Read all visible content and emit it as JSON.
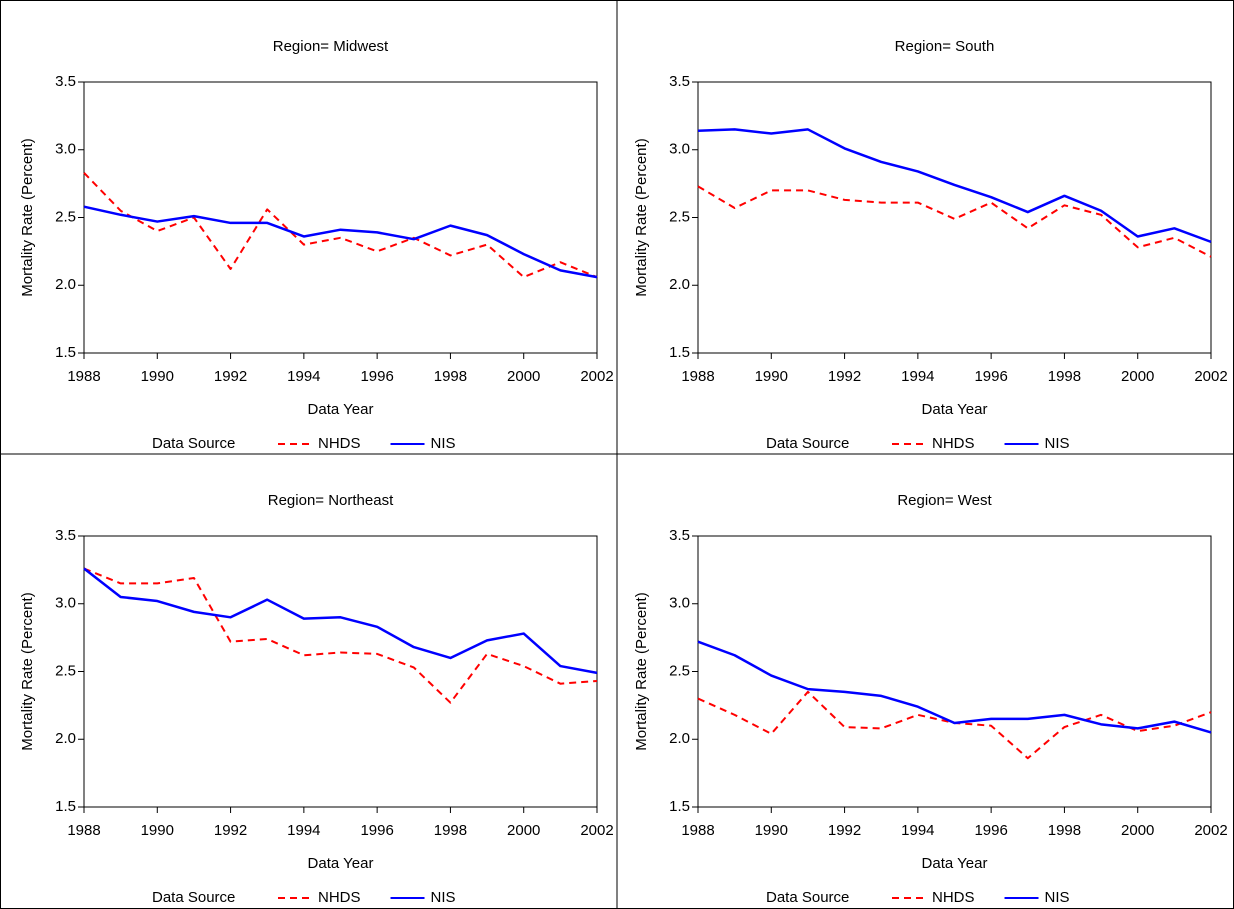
{
  "chart_data": [
    {
      "type": "line",
      "title": "Region= Midwest",
      "x_label": "Data Year",
      "y_label": "Mortality Rate (Percent)",
      "legend_title": "Data Source",
      "legend": "bottom",
      "x": [
        1988,
        1989,
        1990,
        1991,
        1992,
        1993,
        1994,
        1995,
        1996,
        1997,
        1998,
        1999,
        2000,
        2001,
        2002
      ],
      "series": [
        {
          "name": "NHDS",
          "color": "#ff0000",
          "line_style": "dashed",
          "values": [
            2.83,
            2.55,
            2.4,
            2.5,
            2.12,
            2.56,
            2.3,
            2.35,
            2.25,
            2.35,
            2.22,
            2.3,
            2.06,
            2.17,
            2.06
          ]
        },
        {
          "name": "NIS",
          "color": "#0000ff",
          "line_style": "solid",
          "values": [
            2.58,
            2.52,
            2.47,
            2.51,
            2.46,
            2.46,
            2.36,
            2.41,
            2.39,
            2.34,
            2.44,
            2.37,
            2.23,
            2.11,
            2.06
          ]
        }
      ],
      "xlim": [
        1988,
        2002
      ],
      "xticks": [
        1988,
        1990,
        1992,
        1994,
        1996,
        1998,
        2000,
        2002
      ],
      "ylim": [
        1.5,
        3.5
      ],
      "yticks": [
        1.5,
        {
          "value": 2,
          "label": "2.0"
        },
        2.5,
        {
          "value": 3,
          "label": "3.0"
        },
        3.5
      ]
    },
    {
      "type": "line",
      "title": "Region= South",
      "x_label": "Data Year",
      "y_label": "Mortality Rate (Percent)",
      "legend_title": "Data Source",
      "legend": "bottom",
      "x": [
        1988,
        1989,
        1990,
        1991,
        1992,
        1993,
        1994,
        1995,
        1996,
        1997,
        1998,
        1999,
        2000,
        2001,
        2002
      ],
      "series": [
        {
          "name": "NHDS",
          "color": "#ff0000",
          "line_style": "dashed",
          "values": [
            2.73,
            2.57,
            2.7,
            2.7,
            2.63,
            2.61,
            2.61,
            2.49,
            2.61,
            2.42,
            2.59,
            2.52,
            2.28,
            2.35,
            2.21
          ]
        },
        {
          "name": "NIS",
          "color": "#0000ff",
          "line_style": "solid",
          "values": [
            3.14,
            3.15,
            3.12,
            3.15,
            3.01,
            2.91,
            2.84,
            2.74,
            2.65,
            2.54,
            2.66,
            2.55,
            2.36,
            2.42,
            2.32
          ]
        }
      ],
      "xlim": [
        1988,
        2002
      ],
      "xticks": [
        1988,
        1990,
        1992,
        1994,
        1996,
        1998,
        2000,
        2002
      ],
      "ylim": [
        1.5,
        3.5
      ],
      "yticks": [
        1.5,
        {
          "value": 2,
          "label": "2.0"
        },
        2.5,
        {
          "value": 3,
          "label": "3.0"
        },
        3.5
      ]
    },
    {
      "type": "line",
      "title": "Region= Northeast",
      "x_label": "Data Year",
      "y_label": "Mortality Rate (Percent)",
      "legend_title": "Data Source",
      "legend": "bottom",
      "x": [
        1988,
        1989,
        1990,
        1991,
        1992,
        1993,
        1994,
        1995,
        1996,
        1997,
        1998,
        1999,
        2000,
        2001,
        2002
      ],
      "series": [
        {
          "name": "NHDS",
          "color": "#ff0000",
          "line_style": "dashed",
          "values": [
            3.26,
            3.15,
            3.15,
            3.19,
            2.72,
            2.74,
            2.62,
            2.64,
            2.63,
            2.53,
            2.27,
            2.63,
            2.54,
            2.41,
            2.43
          ]
        },
        {
          "name": "NIS",
          "color": "#0000ff",
          "line_style": "solid",
          "values": [
            3.26,
            3.05,
            3.02,
            2.94,
            2.9,
            3.03,
            2.89,
            2.9,
            2.83,
            2.68,
            2.6,
            2.73,
            2.78,
            2.54,
            2.49
          ]
        }
      ],
      "xlim": [
        1988,
        2002
      ],
      "xticks": [
        1988,
        1990,
        1992,
        1994,
        1996,
        1998,
        2000,
        2002
      ],
      "ylim": [
        1.5,
        3.5
      ],
      "yticks": [
        1.5,
        {
          "value": 2,
          "label": "2.0"
        },
        2.5,
        {
          "value": 3,
          "label": "3.0"
        },
        3.5
      ]
    },
    {
      "type": "line",
      "title": "Region= West",
      "x_label": "Data Year",
      "y_label": "Mortality Rate (Percent)",
      "legend_title": "Data Source",
      "legend": "bottom",
      "x": [
        1988,
        1989,
        1990,
        1991,
        1992,
        1993,
        1994,
        1995,
        1996,
        1997,
        1998,
        1999,
        2000,
        2001,
        2002
      ],
      "series": [
        {
          "name": "NHDS",
          "color": "#ff0000",
          "line_style": "dashed",
          "values": [
            2.3,
            2.18,
            2.04,
            2.35,
            2.09,
            2.08,
            2.18,
            2.12,
            2.1,
            1.86,
            2.09,
            2.18,
            2.06,
            2.1,
            2.2
          ]
        },
        {
          "name": "NIS",
          "color": "#0000ff",
          "line_style": "solid",
          "values": [
            2.72,
            2.62,
            2.47,
            2.37,
            2.35,
            2.32,
            2.24,
            2.12,
            2.15,
            2.15,
            2.18,
            2.11,
            2.08,
            2.13,
            2.05
          ]
        }
      ],
      "xlim": [
        1988,
        2002
      ],
      "xticks": [
        1988,
        1990,
        1992,
        1994,
        1996,
        1998,
        2000,
        2002
      ],
      "ylim": [
        1.5,
        3.5
      ],
      "yticks": [
        1.5,
        {
          "value": 2,
          "label": "2.0"
        },
        2.5,
        {
          "value": 3,
          "label": "3.0"
        },
        3.5
      ]
    }
  ]
}
